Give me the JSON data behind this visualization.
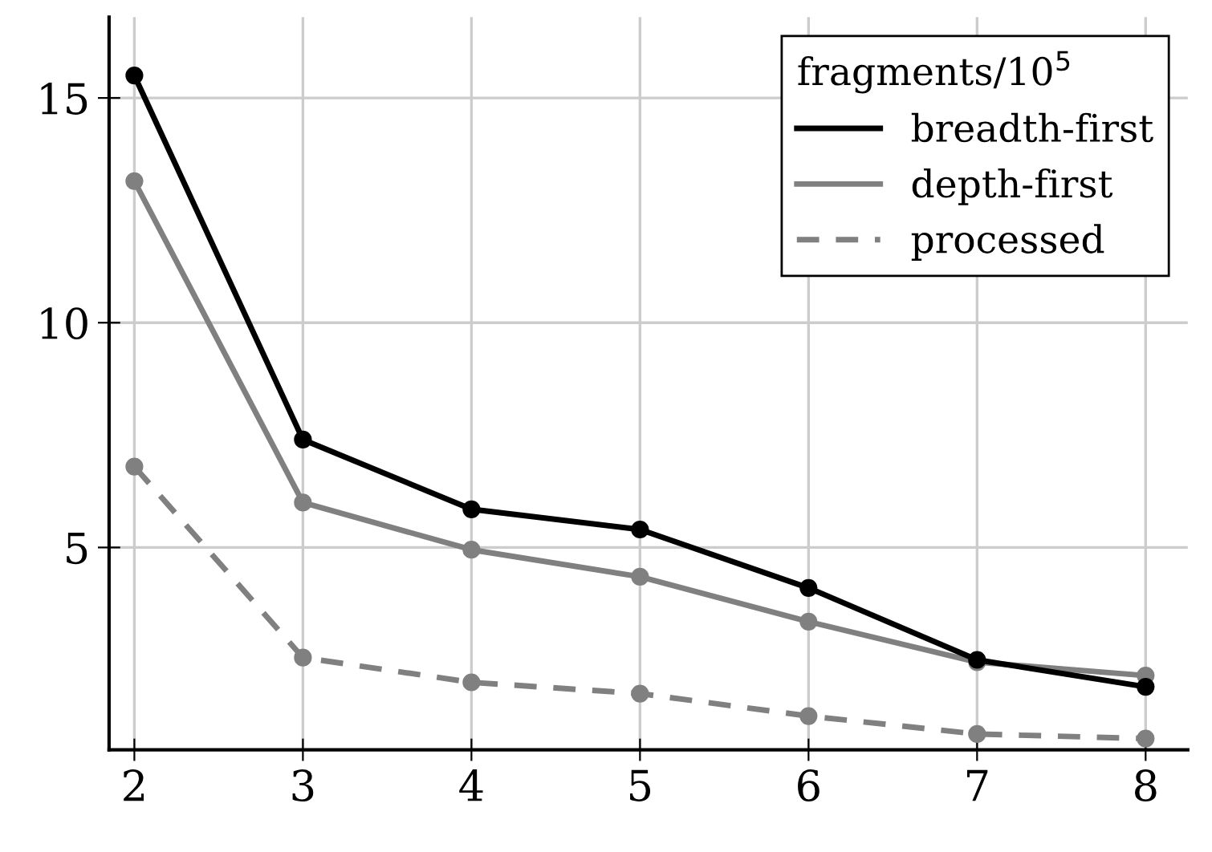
{
  "chart_data": {
    "type": "line",
    "legend_title": "fragments/10$^{5}$",
    "x": [
      2,
      3,
      4,
      5,
      6,
      7,
      8
    ],
    "series": [
      {
        "name": "breadth-first",
        "color": "#000000",
        "line_style": "solid",
        "values": [
          15.5,
          7.4,
          5.85,
          5.4,
          4.1,
          2.5,
          1.9
        ]
      },
      {
        "name": "depth-first",
        "color": "#808080",
        "line_style": "solid",
        "values": [
          13.15,
          6.0,
          4.95,
          4.35,
          3.35,
          2.45,
          2.15
        ]
      },
      {
        "name": "processed",
        "color": "#808080",
        "line_style": "dashed",
        "values": [
          6.8,
          2.55,
          2.0,
          1.75,
          1.25,
          0.85,
          0.75
        ]
      }
    ],
    "xlim": [
      1.85,
      8.25
    ],
    "ylim": [
      0.5,
      16.8
    ],
    "xticks": [
      2,
      3,
      4,
      5,
      6,
      7,
      8
    ],
    "yticks": [
      5,
      10,
      15
    ],
    "grid": true,
    "legend": "top right",
    "marker": "circle"
  }
}
